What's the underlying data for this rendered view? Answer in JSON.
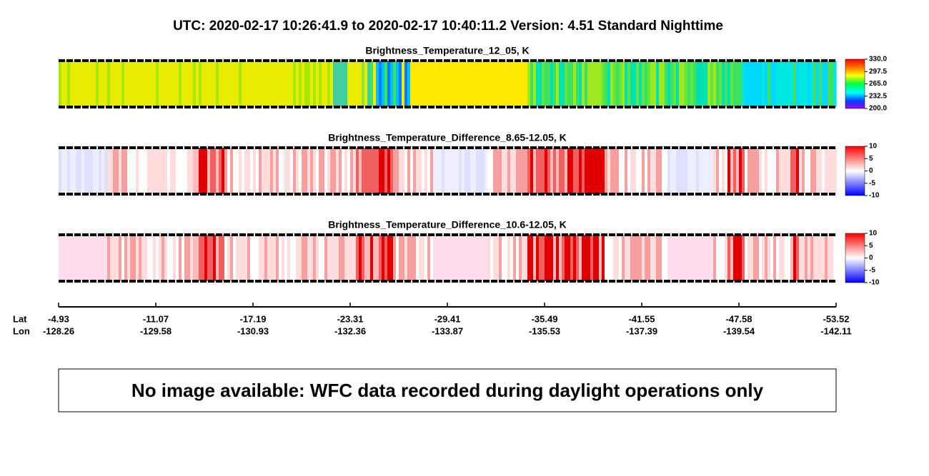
{
  "header": {
    "title": "UTC:  2020-02-17   10:26:41.9  to  2020-02-17   10:40:11.2    Version: 4.51  Standard Nighttime"
  },
  "panels": [
    {
      "title": "Brightness_Temperature_12_05, K",
      "palette": "rainbow",
      "colorbar_ticks": [
        {
          "value": 330,
          "label": "330.0"
        },
        297.5,
        {
          "value": 265,
          "label": "265.0"
        },
        232.5,
        {
          "value": 200,
          "label": "200.0"
        }
      ]
    },
    {
      "title": "Brightness_Temperature_Difference_8.65-12.05, K",
      "palette": "diverging",
      "colorbar_ticks": [
        10,
        5,
        0,
        -5,
        -10
      ]
    },
    {
      "title": "Brightness_Temperature_Difference_10.6-12.05, K",
      "palette": "diverging",
      "colorbar_ticks": [
        10,
        5,
        0,
        -5,
        -10
      ]
    }
  ],
  "axis": {
    "lat_label": "Lat",
    "lon_label": "Lon",
    "lat": [
      -4.93,
      -11.07,
      -17.19,
      -23.31,
      -29.41,
      -35.49,
      -41.55,
      -47.58,
      -53.52
    ],
    "lon": [
      -128.26,
      -129.58,
      -130.93,
      -132.36,
      -133.87,
      -135.53,
      -137.39,
      -139.54,
      -142.11
    ]
  },
  "message": "No image available: WFC data recorded during daylight operations only"
}
